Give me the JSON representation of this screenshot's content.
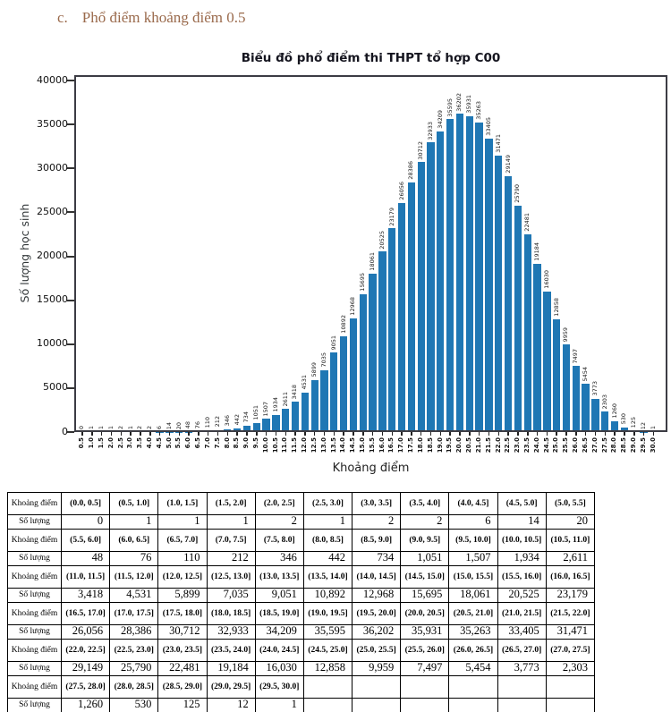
{
  "heading": {
    "marker": "c.",
    "text": "Phổ điểm khoảng điểm 0.5"
  },
  "chart_data": {
    "type": "bar",
    "title": "Biểu đồ phổ điểm thi THPT tổ hợp C00",
    "xlabel": "Khoảng điểm",
    "ylabel": "Số lượng học sinh",
    "ylim": [
      0,
      40000
    ],
    "yticks": [
      0,
      5000,
      10000,
      15000,
      20000,
      25000,
      30000,
      35000,
      40000
    ],
    "grid": false,
    "legend": null,
    "bar_color": "#1f77b4",
    "categories": [
      "0.5",
      "1.0",
      "1.5",
      "2.0",
      "2.5",
      "3.0",
      "3.5",
      "4.0",
      "4.5",
      "5.0",
      "5.5",
      "6.0",
      "6.5",
      "7.0",
      "7.5",
      "8.0",
      "8.5",
      "9.0",
      "9.5",
      "10.0",
      "10.5",
      "11.0",
      "11.5",
      "12.0",
      "12.5",
      "13.0",
      "13.5",
      "14.0",
      "14.5",
      "15.0",
      "15.5",
      "16.0",
      "16.5",
      "17.0",
      "17.5",
      "18.0",
      "18.5",
      "19.0",
      "19.5",
      "20.0",
      "20.5",
      "21.0",
      "21.5",
      "22.0",
      "22.5",
      "23.0",
      "23.5",
      "24.0",
      "24.5",
      "25.0",
      "25.5",
      "26.0",
      "26.5",
      "27.0",
      "27.5",
      "28.0",
      "28.5",
      "29.0",
      "29.5",
      "30.0"
    ],
    "values": [
      0,
      1,
      1,
      1,
      2,
      1,
      2,
      2,
      6,
      14,
      20,
      48,
      76,
      110,
      212,
      346,
      442,
      734,
      1051,
      1507,
      1934,
      2611,
      3418,
      4531,
      5899,
      7035,
      9051,
      10892,
      12968,
      15695,
      18061,
      20525,
      23179,
      26056,
      28386,
      30712,
      32933,
      34209,
      35595,
      36202,
      35931,
      35263,
      33405,
      31471,
      29149,
      25790,
      22481,
      19184,
      16030,
      12858,
      9959,
      7497,
      5454,
      3773,
      2303,
      1260,
      530,
      125,
      12,
      1
    ]
  },
  "table": {
    "row_label_interval": "Khoảng điểm",
    "row_label_count": "Số lượng",
    "groups": [
      {
        "intervals": [
          "(0.0, 0.5]",
          "(0.5, 1.0]",
          "(1.0, 1.5]",
          "(1.5, 2.0]",
          "(2.0, 2.5]",
          "(2.5, 3.0]",
          "(3.0, 3.5]",
          "(3.5, 4.0]",
          "(4.0, 4.5]",
          "(4.5, 5.0]",
          "(5.0, 5.5]"
        ],
        "counts": [
          "0",
          "1",
          "1",
          "1",
          "2",
          "1",
          "2",
          "2",
          "6",
          "14",
          "20"
        ]
      },
      {
        "intervals": [
          "(5.5, 6.0]",
          "(6.0, 6.5]",
          "(6.5, 7.0]",
          "(7.0, 7.5]",
          "(7.5, 8.0]",
          "(8.0, 8.5]",
          "(8.5, 9.0]",
          "(9.0, 9.5]",
          "(9.5, 10.0]",
          "(10.0, 10.5]",
          "(10.5, 11.0]"
        ],
        "counts": [
          "48",
          "76",
          "110",
          "212",
          "346",
          "442",
          "734",
          "1,051",
          "1,507",
          "1,934",
          "2,611"
        ]
      },
      {
        "intervals": [
          "(11.0, 11.5]",
          "(11.5, 12.0]",
          "(12.0, 12.5]",
          "(12.5, 13.0]",
          "(13.0, 13.5]",
          "(13.5, 14.0]",
          "(14.0, 14.5]",
          "(14.5, 15.0]",
          "(15.0, 15.5]",
          "(15.5, 16.0]",
          "(16.0, 16.5]"
        ],
        "counts": [
          "3,418",
          "4,531",
          "5,899",
          "7,035",
          "9,051",
          "10,892",
          "12,968",
          "15,695",
          "18,061",
          "20,525",
          "23,179"
        ]
      },
      {
        "intervals": [
          "(16.5, 17.0]",
          "(17.0, 17.5]",
          "(17.5, 18.0]",
          "(18.0, 18.5]",
          "(18.5, 19.0]",
          "(19.0, 19.5]",
          "(19.5, 20.0]",
          "(20.0, 20.5]",
          "(20.5, 21.0]",
          "(21.0, 21.5]",
          "(21.5, 22.0]"
        ],
        "counts": [
          "26,056",
          "28,386",
          "30,712",
          "32,933",
          "34,209",
          "35,595",
          "36,202",
          "35,931",
          "35,263",
          "33,405",
          "31,471"
        ]
      },
      {
        "intervals": [
          "(22.0, 22.5]",
          "(22.5, 23.0]",
          "(23.0, 23.5]",
          "(23.5, 24.0]",
          "(24.0, 24.5]",
          "(24.5, 25.0]",
          "(25.0, 25.5]",
          "(25.5, 26.0]",
          "(26.0, 26.5]",
          "(26.5, 27.0]",
          "(27.0, 27.5]"
        ],
        "counts": [
          "29,149",
          "25,790",
          "22,481",
          "19,184",
          "16,030",
          "12,858",
          "9,959",
          "7,497",
          "5,454",
          "3,773",
          "2,303"
        ]
      },
      {
        "intervals": [
          "(27.5, 28.0]",
          "(28.0, 28.5]",
          "(28.5, 29.0]",
          "(29.0, 29.5]",
          "(29.5, 30.0]",
          "",
          "",
          "",
          "",
          "",
          ""
        ],
        "counts": [
          "1,260",
          "530",
          "125",
          "12",
          "1",
          "",
          "",
          "",
          "",
          "",
          ""
        ]
      }
    ]
  },
  "colors": {
    "bar": "#1f77b4",
    "heading": "#9a6a4c",
    "frame": "#3c3c44"
  }
}
